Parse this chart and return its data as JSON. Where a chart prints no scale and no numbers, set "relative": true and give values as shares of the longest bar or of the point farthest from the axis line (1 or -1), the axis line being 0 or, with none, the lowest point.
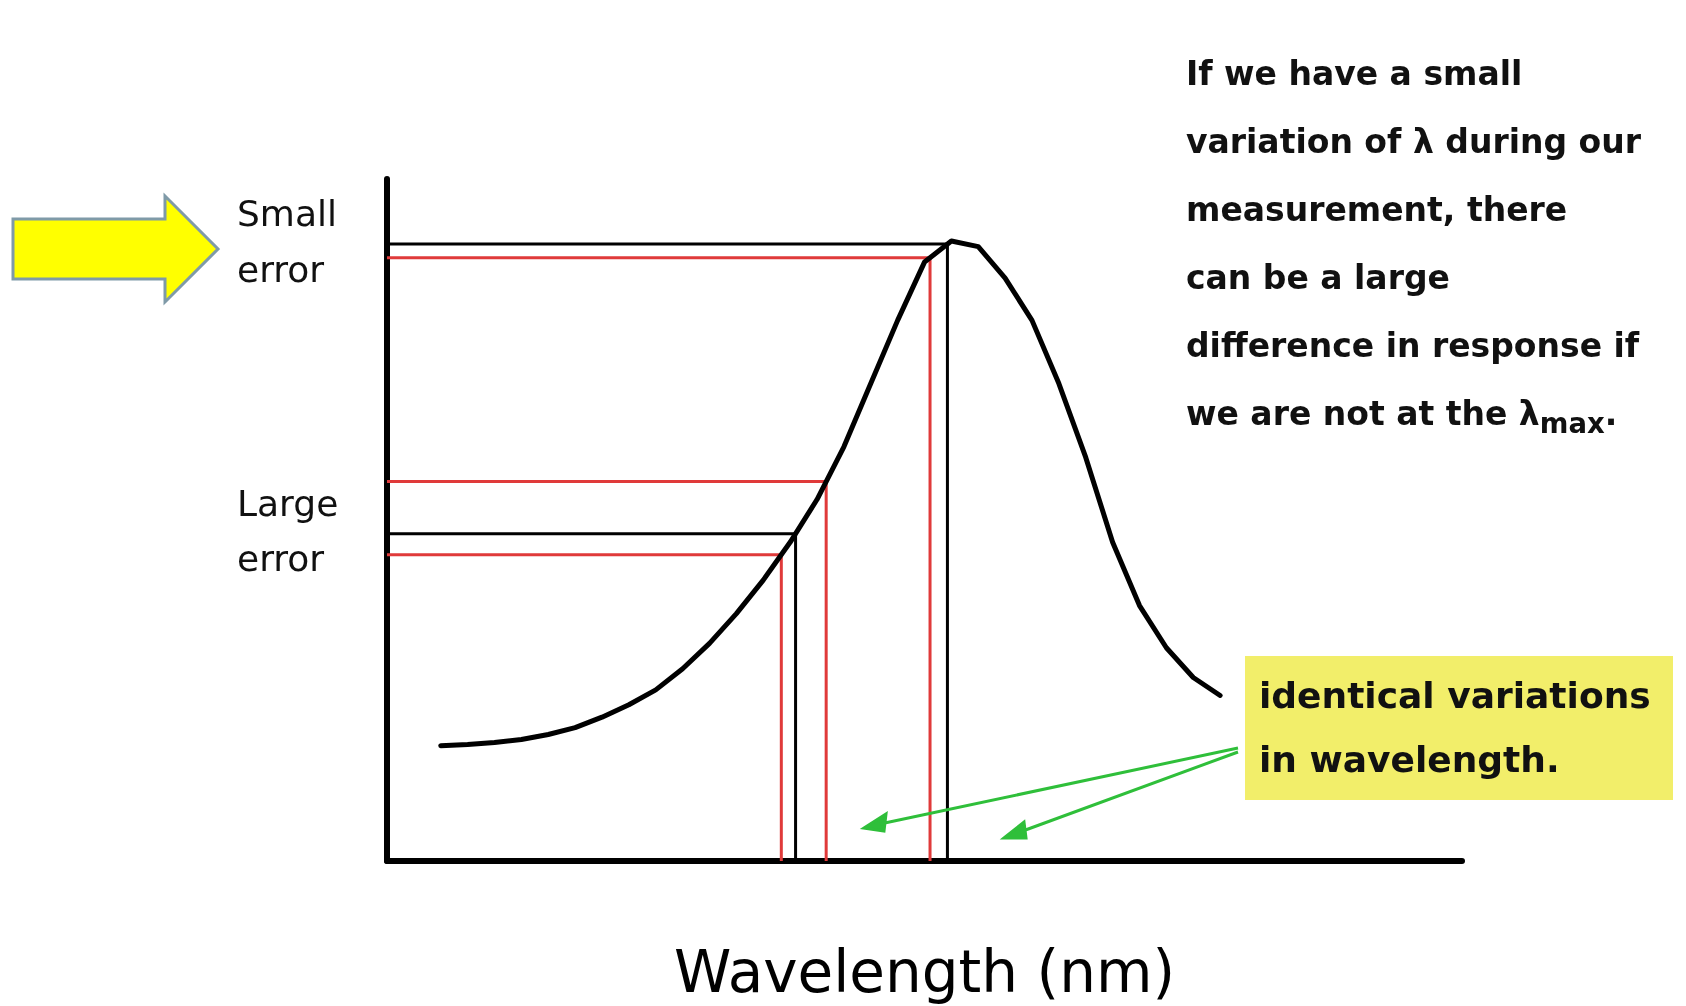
{
  "chart_data": {
    "type": "line",
    "relative": true,
    "xlabel": "Wavelength (nm)",
    "categories": [
      null,
      null,
      null,
      null,
      null,
      null,
      null,
      null,
      null,
      null,
      null,
      null,
      null,
      null,
      null,
      null,
      null,
      null,
      null,
      null,
      null,
      null,
      null,
      null,
      null,
      null,
      null,
      null,
      null,
      null,
      null,
      null,
      null,
      null,
      null,
      null,
      null,
      null,
      null,
      null,
      null
    ],
    "series": [
      {
        "color": "#000000",
        "values": [
          null,
          null,
          0.186,
          0.188,
          0.191,
          0.196,
          0.204,
          0.215,
          0.232,
          0.252,
          0.276,
          0.31,
          0.351,
          0.399,
          0.453,
          0.514,
          0.583,
          0.668,
          0.77,
          0.872,
          0.966,
          1.0,
          0.991,
          0.94,
          0.872,
          0.77,
          0.651,
          0.514,
          0.412,
          0.344,
          0.296,
          0.267,
          null,
          null,
          null,
          null,
          null,
          null,
          null,
          null,
          null
        ]
      }
    ],
    "ref_lines": [
      {
        "axis": "y",
        "value": 0.995,
        "label": "Small error",
        "color": "#000000"
      },
      {
        "axis": "y",
        "value": 0.973,
        "color": "#e03a3a"
      },
      {
        "axis": "y",
        "value": 0.612,
        "color": "#e03a3a"
      },
      {
        "axis": "y",
        "value": 0.528,
        "label": "Large error",
        "color": "#000000"
      },
      {
        "axis": "y",
        "value": 0.494,
        "color": "#e03a3a"
      }
    ],
    "annotations": [
      "If we have a small variation of λ during our measurement, there can be a large difference in response if we are not at the λ$_{max}$.",
      "identical variations in wavelength."
    ],
    "marker": "none",
    "grid": false
  }
}
